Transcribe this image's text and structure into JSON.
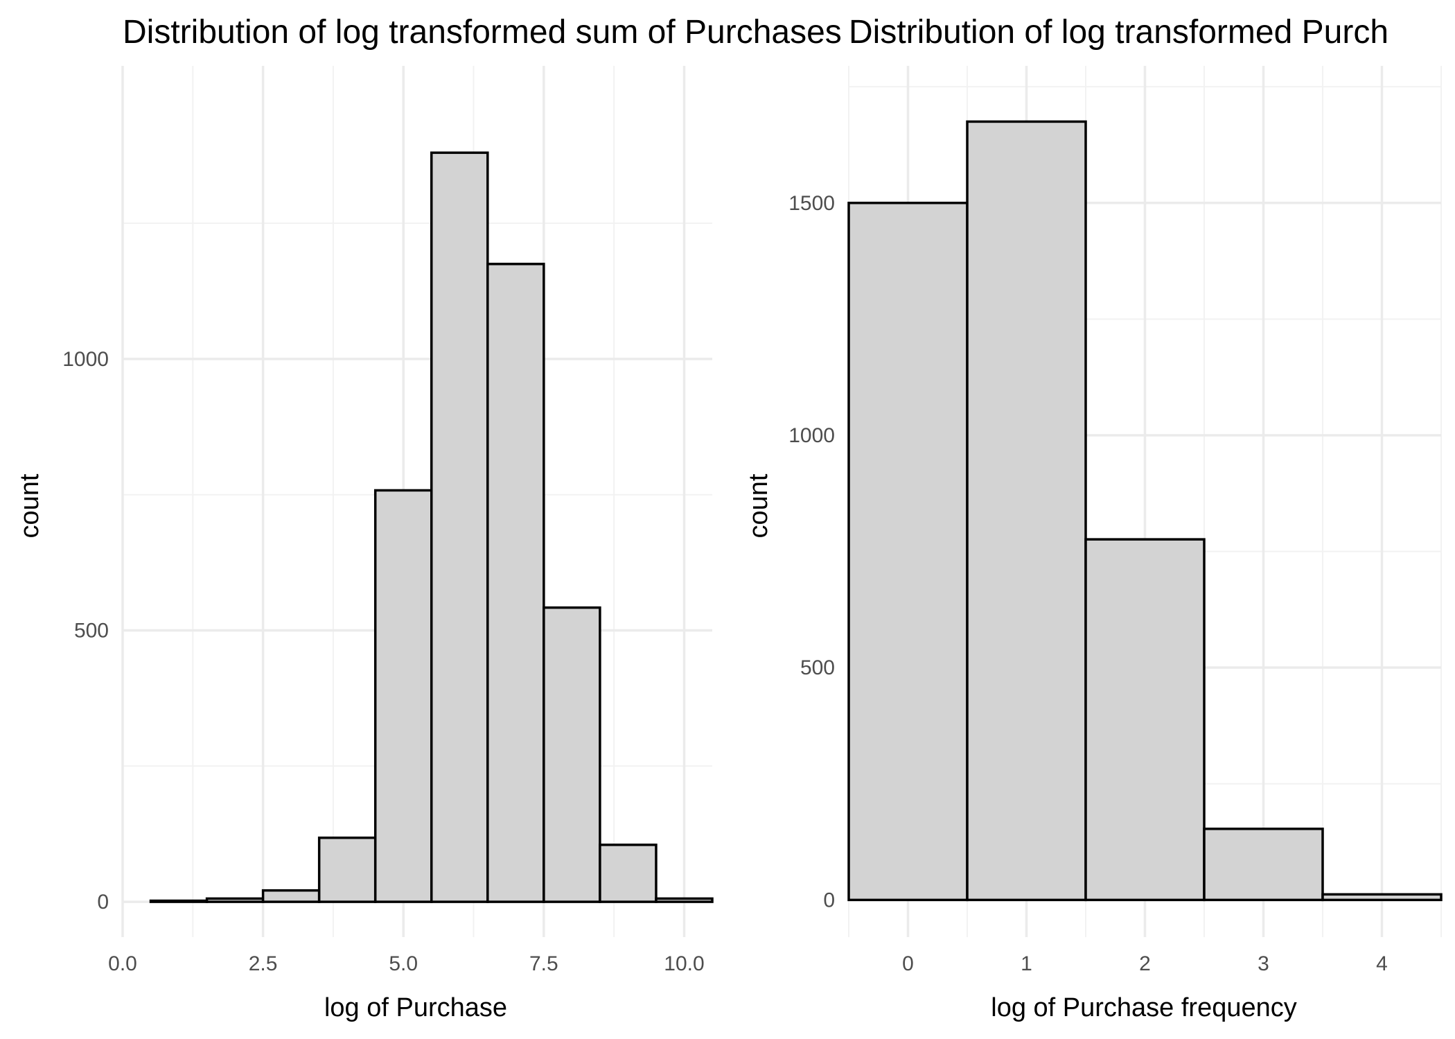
{
  "colors": {
    "bar_fill": "#d3d3d3",
    "bar_stroke": "#000000",
    "grid": "#ebebeb",
    "background": "#ffffff"
  },
  "chart_data": [
    {
      "type": "bar",
      "title": "Distribution of log transformed sum of Purchases",
      "xlabel": "log of Purchase",
      "ylabel": "count",
      "grid": true,
      "x_ticks": [
        "0.0",
        "2.5",
        "5.0",
        "7.5",
        "10.0"
      ],
      "x_tick_values": [
        0,
        2.5,
        5,
        7.5,
        10
      ],
      "y_ticks": [
        "0",
        "500",
        "1000"
      ],
      "y_tick_values": [
        0,
        500,
        1000
      ],
      "xlim": [
        0,
        10.5
      ],
      "ylim": [
        -65,
        1540
      ],
      "bin_width": 1,
      "bins": [
        {
          "center": 1,
          "count": 2
        },
        {
          "center": 2,
          "count": 6
        },
        {
          "center": 3,
          "count": 21
        },
        {
          "center": 4,
          "count": 118
        },
        {
          "center": 5,
          "count": 758
        },
        {
          "center": 6,
          "count": 1380
        },
        {
          "center": 7,
          "count": 1175
        },
        {
          "center": 8,
          "count": 542
        },
        {
          "center": 9,
          "count": 105
        },
        {
          "center": 10,
          "count": 6
        }
      ]
    },
    {
      "type": "bar",
      "title": "Distribution of log transformed Purch",
      "xlabel": "log of Purchase frequency",
      "ylabel": "count",
      "grid": true,
      "x_ticks": [
        "0",
        "1",
        "2",
        "3",
        "4"
      ],
      "x_tick_values": [
        0,
        1,
        2,
        3,
        4
      ],
      "y_ticks": [
        "0",
        "500",
        "1000",
        "1500"
      ],
      "y_tick_values": [
        0,
        500,
        1000,
        1500
      ],
      "xlim": [
        -0.5,
        4.5
      ],
      "ylim": [
        -80,
        1795
      ],
      "bin_width": 1,
      "bins": [
        {
          "center": 0,
          "count": 1500
        },
        {
          "center": 1,
          "count": 1675
        },
        {
          "center": 2,
          "count": 776
        },
        {
          "center": 3,
          "count": 153
        },
        {
          "center": 4,
          "count": 12
        }
      ]
    }
  ]
}
